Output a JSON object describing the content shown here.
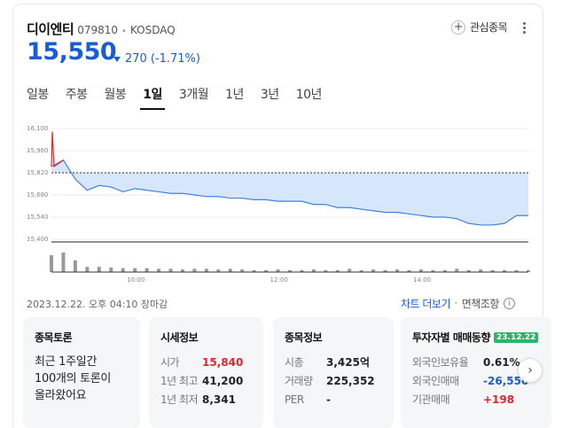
{
  "stock": {
    "name": "디이엔티",
    "code": "079810",
    "separator": "•",
    "market": "KOSDAQ",
    "price": "15,550",
    "change": "270",
    "change_pct": "(-1.71%)",
    "favorite_label": "관심종목"
  },
  "tabs": [
    {
      "label": "일봉"
    },
    {
      "label": "주봉"
    },
    {
      "label": "월봉"
    },
    {
      "label": "1일",
      "active": true
    },
    {
      "label": "3개월"
    },
    {
      "label": "1년"
    },
    {
      "label": "3년"
    },
    {
      "label": "10년"
    }
  ],
  "chart_data": {
    "type": "area",
    "y_ticks": [
      "16,100",
      "15,960",
      "15,820",
      "15,680",
      "15,540",
      "15,400"
    ],
    "ylim": [
      15400,
      16100
    ],
    "x_ticks": [
      "10:00",
      "12:00",
      "14:00"
    ],
    "baseline": 15820,
    "x": [
      "09:00",
      "09:05",
      "09:10",
      "09:20",
      "09:30",
      "09:40",
      "09:50",
      "10:00",
      "10:10",
      "10:20",
      "10:30",
      "10:40",
      "10:50",
      "11:00",
      "11:10",
      "11:20",
      "11:30",
      "11:40",
      "11:50",
      "12:00",
      "12:10",
      "12:20",
      "12:30",
      "12:40",
      "12:50",
      "13:00",
      "13:10",
      "13:20",
      "13:30",
      "13:40",
      "13:50",
      "14:00",
      "14:10",
      "14:20",
      "14:30",
      "14:40",
      "14:50",
      "15:00",
      "15:10",
      "15:20",
      "15:30"
    ],
    "values": [
      15860,
      15900,
      15780,
      15710,
      15740,
      15730,
      15700,
      15720,
      15710,
      15700,
      15690,
      15690,
      15680,
      15670,
      15670,
      15660,
      15660,
      15650,
      15650,
      15640,
      15640,
      15640,
      15620,
      15620,
      15600,
      15600,
      15590,
      15580,
      15570,
      15570,
      15560,
      15550,
      15540,
      15540,
      15530,
      15500,
      15490,
      15490,
      15500,
      15550,
      15550
    ],
    "volume": [
      26,
      30,
      18,
      8,
      8,
      7,
      6,
      6,
      6,
      5,
      5,
      4,
      5,
      5,
      4,
      5,
      4,
      3,
      3,
      4,
      3,
      3,
      4,
      3,
      3,
      5,
      3,
      4,
      3,
      4,
      3,
      4,
      3,
      3,
      5,
      3,
      4,
      3,
      3,
      3,
      3
    ],
    "colors": {
      "line": "#3f82e0",
      "fill": "#d7e7fb",
      "volume": "#999999",
      "spike": "#e0252b"
    }
  },
  "footer": {
    "timestamp": "2023.12.22. 오후 04:10 장마감",
    "chart_more": "차트 더보기",
    "disclaimer": "면책조항",
    "info_icon": "i"
  },
  "panels": {
    "discussion": {
      "title": "종목토론",
      "body": "최근 1주일간 100개의 토론이 올라왔어요"
    },
    "quote": {
      "title": "시세정보",
      "rows": [
        {
          "k": "시가",
          "v": "15,840"
        },
        {
          "k": "1년 최고",
          "v": "41,200"
        },
        {
          "k": "1년 최저",
          "v": "8,341"
        }
      ]
    },
    "info": {
      "title": "종목정보",
      "rows": [
        {
          "k": "시총",
          "v": "3,425억"
        },
        {
          "k": "거래량",
          "v": "225,352"
        },
        {
          "k": "PER",
          "v": "-"
        }
      ]
    },
    "investor": {
      "title": "투자자별 매매동향",
      "date": "23.12.22",
      "rows": [
        {
          "k": "외국인보유율",
          "v": "0.61%"
        },
        {
          "k": "외국인매매",
          "v": "-26,550"
        },
        {
          "k": "기관매매",
          "v": "+198"
        }
      ]
    }
  },
  "nav": {
    "next_icon": "›"
  }
}
